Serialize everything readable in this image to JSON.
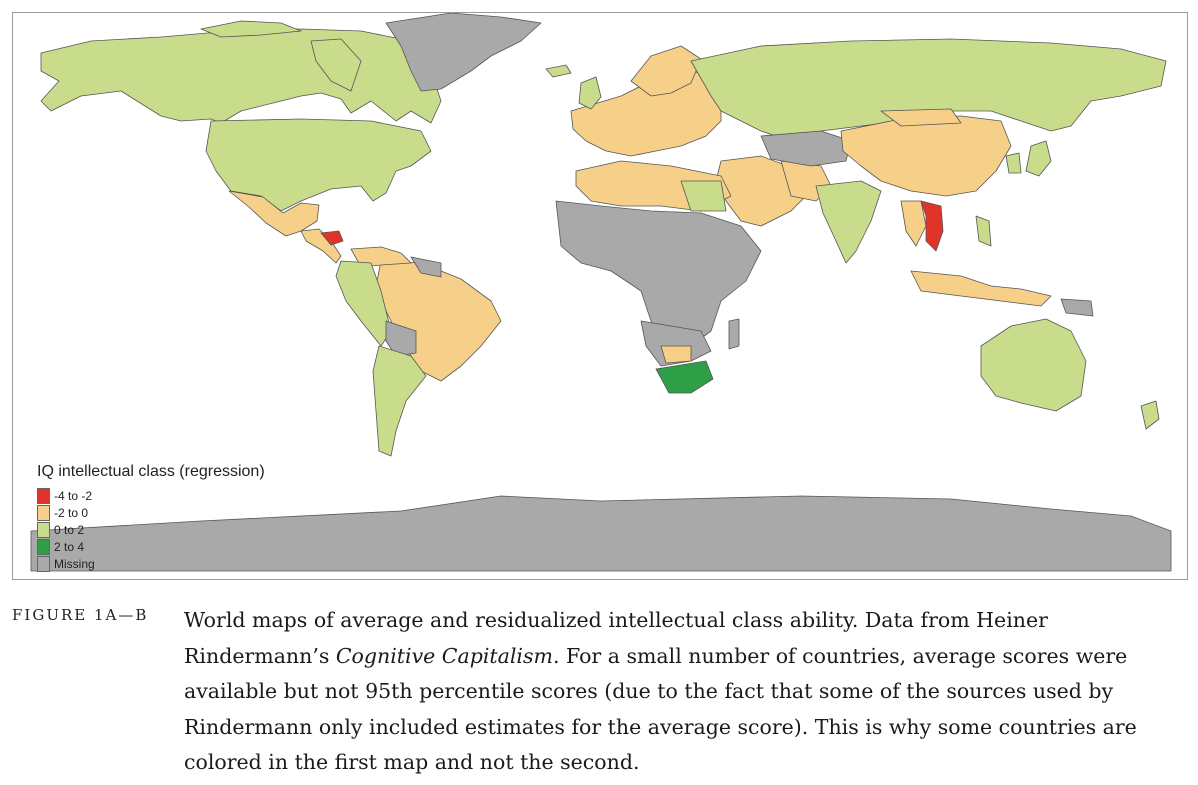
{
  "colors": {
    "neg4_neg2": "#e0332a",
    "neg2_0": "#f6d088",
    "zero_2": "#c9dc8c",
    "two_4": "#2e9e47",
    "missing": "#a9a9a9",
    "border": "#555555"
  },
  "legend": {
    "title": "IQ intellectual class (regression)",
    "items": [
      {
        "label": "-4 to -2",
        "color": "#e0332a"
      },
      {
        "label": "-2 to 0",
        "color": "#f6d088"
      },
      {
        "label": "0 to 2",
        "color": "#c9dc8c"
      },
      {
        "label": "2 to 4",
        "color": "#2e9e47"
      },
      {
        "label": "Missing",
        "color": "#a9a9a9"
      }
    ]
  },
  "caption": {
    "label": "FIGURE 1A—B",
    "part1": "World maps of average and residualized intellectual class ability. Data from Heiner Rindermann’s ",
    "book": "Cognitive Capitalism",
    "part2": ". For a small number of countries, average scores were available but not 95th percentile scores (due to the fact that some of the sources used by Rindermann only included estimates for the average score). This is why some countries are colored in the first map and not the second."
  }
}
